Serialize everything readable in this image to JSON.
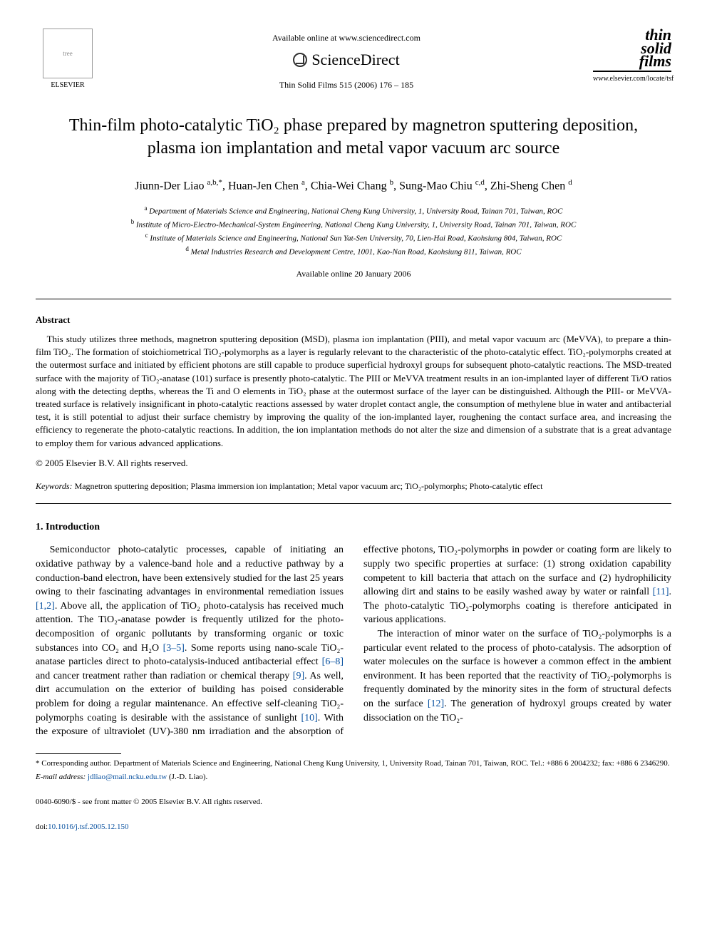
{
  "header": {
    "available_text": "Available online at www.sciencedirect.com",
    "platform": "ScienceDirect",
    "journal_ref": "Thin Solid Films 515 (2006) 176 – 185",
    "publisher_name": "ELSEVIER",
    "journal_logo_line1": "thin",
    "journal_logo_line2": "solid",
    "journal_logo_line3": "films",
    "journal_url": "www.elsevier.com/locate/tsf"
  },
  "title": "Thin-film photo-catalytic TiO₂ phase prepared by magnetron sputtering deposition, plasma ion implantation and metal vapor vacuum arc source",
  "authors_html": "Jiunn-Der Liao <sup>a,b,*</sup>, Huan-Jen Chen <sup>a</sup>, Chia-Wei Chang <sup>b</sup>, Sung-Mao Chiu <sup>c,d</sup>, Zhi-Sheng Chen <sup>d</sup>",
  "affiliations": {
    "a": "Department of Materials Science and Engineering, National Cheng Kung University, 1, University Road, Tainan 701, Taiwan, ROC",
    "b": "Institute of Micro-Electro-Mechanical-System Engineering, National Cheng Kung University, 1, University Road, Tainan 701, Taiwan, ROC",
    "c": "Institute of Materials Science and Engineering, National Sun Yat-Sen University, 70, Lien-Hai Road, Kaohsiung 804, Taiwan, ROC",
    "d": "Metal Industries Research and Development Centre, 1001, Kao-Nan Road, Kaohsiung 811, Taiwan, ROC"
  },
  "online_date": "Available online 20 January 2006",
  "abstract": {
    "heading": "Abstract",
    "body": "This study utilizes three methods, magnetron sputtering deposition (MSD), plasma ion implantation (PIII), and metal vapor vacuum arc (MeVVA), to prepare a thin-film TiO₂. The formation of stoichiometrical TiO₂-polymorphs as a layer is regularly relevant to the characteristic of the photo-catalytic effect. TiO₂-polymorphs created at the outermost surface and initiated by efficient photons are still capable to produce superficial hydroxyl groups for subsequent photo-catalytic reactions. The MSD-treated surface with the majority of TiO₂-anatase (101) surface is presently photo-catalytic. The PIII or MeVVA treatment results in an ion-implanted layer of different Ti/O ratios along with the detecting depths, whereas the Ti and O elements in TiO₂ phase at the outermost surface of the layer can be distinguished. Although the PIII- or MeVVA-treated surface is relatively insignificant in photo-catalytic reactions assessed by water droplet contact angle, the consumption of methylene blue in water and antibacterial test, it is still potential to adjust their surface chemistry by improving the quality of the ion-implanted layer, roughening the contact surface area, and increasing the efficiency to regenerate the photo-catalytic reactions. In addition, the ion implantation methods do not alter the size and dimension of a substrate that is a great advantage to employ them for various advanced applications.",
    "copyright": "© 2005 Elsevier B.V. All rights reserved."
  },
  "keywords": {
    "label": "Keywords:",
    "text": "Magnetron sputtering deposition; Plasma immersion ion implantation; Metal vapor vacuum arc; TiO₂-polymorphs; Photo-catalytic effect"
  },
  "intro": {
    "heading": "1. Introduction",
    "p1_pre": "Semiconductor photo-catalytic processes, capable of initiating an oxidative pathway by a valence-band hole and a reductive pathway by a conduction-band electron, have been extensively studied for the last 25 years owing to their fascinating advantages in environmental remediation issues ",
    "ref1": "[1,2]",
    "p1_mid1": ". Above all, the application of TiO₂ photo-catalysis has received much attention. The TiO₂-anatase powder is frequently utilized for the photo-decomposition of organic pollutants by transforming organic or toxic substances into CO₂ and H₂O ",
    "ref2": "[3–5]",
    "p1_mid2": ". Some reports using nano-scale TiO₂-anatase particles direct to photo-catalysis-induced antibacterial effect ",
    "ref3": "[6–8]",
    "p1_mid3": " and cancer treatment rather than radiation or chemical therapy ",
    "ref4": "[9]",
    "p1_end": ". As well, dirt accumulation on the exterior of building has poised considerable problem for doing a regular maintenance. An effective self-cleaning TiO₂-polymorphs coating is desirable with the assistance of sunlight ",
    "ref5": "[10]",
    "p1_tail": ". With the exposure of ultraviolet (UV)-380 nm irradiation and the absorption of effective photons, TiO₂-polymorphs in powder or coating form are likely to supply two specific properties at surface: (1) strong oxidation capability competent to kill bacteria that attach on the surface and (2) hydrophilicity allowing dirt and stains to be easily washed away by water or rainfall ",
    "ref6": "[11]",
    "p1_final": ". The photo-catalytic TiO₂-polymorphs coating is therefore anticipated in various applications.",
    "p2_pre": "The interaction of minor water on the surface of TiO₂-polymorphs is a particular event related to the process of photo-catalysis. The adsorption of water molecules on the surface is however a common effect in the ambient environment. It has been reported that the reactivity of TiO₂-polymorphs is frequently dominated by the minority sites in the form of structural defects on the surface ",
    "ref7": "[12]",
    "p2_end": ". The generation of hydroxyl groups created by water dissociation on the TiO₂-"
  },
  "footnote": {
    "corr": "* Corresponding author. Department of Materials Science and Engineering, National Cheng Kung University, 1, University Road, Tainan 701, Taiwan, ROC. Tel.: +886 6 2004232; fax: +886 6 2346290.",
    "email_label": "E-mail address:",
    "email": "jdliao@mail.ncku.edu.tw",
    "email_suffix": "(J.-D. Liao)."
  },
  "footer": {
    "line1": "0040-6090/$ - see front matter © 2005 Elsevier B.V. All rights reserved.",
    "doi_label": "doi:",
    "doi": "10.1016/j.tsf.2005.12.150"
  },
  "colors": {
    "link": "#0a52a0",
    "text": "#000000",
    "background": "#ffffff"
  }
}
